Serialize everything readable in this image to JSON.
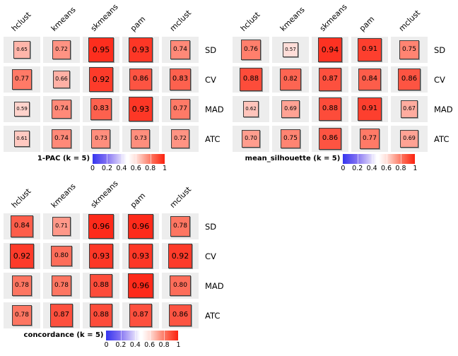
{
  "chart_data": {
    "type": "heatmap",
    "columns": [
      "hclust",
      "kmeans",
      "skmeans",
      "pam",
      "mclust"
    ],
    "row_labels": [
      "SD",
      "CV",
      "MAD",
      "ATC"
    ],
    "panels": [
      {
        "title": "1-PAC (k = 5)",
        "values": [
          [
            "0.65",
            "0.72",
            "0.95",
            "0.93",
            "0.74"
          ],
          [
            "0.77",
            "0.66",
            "0.92",
            "0.86",
            "0.83"
          ],
          [
            "0.59",
            "0.74",
            "0.83",
            "0.93",
            "0.77"
          ],
          [
            "0.61",
            "0.74",
            "0.73",
            "0.73",
            "0.72"
          ]
        ]
      },
      {
        "title": "mean_silhouette (k = 5)",
        "values": [
          [
            "0.76",
            "0.57",
            "0.94",
            "0.91",
            "0.75"
          ],
          [
            "0.88",
            "0.82",
            "0.87",
            "0.84",
            "0.86"
          ],
          [
            "0.62",
            "0.69",
            "0.88",
            "0.91",
            "0.67"
          ],
          [
            "0.70",
            "0.75",
            "0.86",
            "0.77",
            "0.69"
          ]
        ]
      },
      {
        "title": "concordance (k = 5)",
        "values": [
          [
            "0.84",
            "0.71",
            "0.96",
            "0.96",
            "0.78"
          ],
          [
            "0.92",
            "0.80",
            "0.93",
            "0.93",
            "0.92"
          ],
          [
            "0.78",
            "0.78",
            "0.88",
            "0.96",
            "0.80"
          ],
          [
            "0.78",
            "0.87",
            "0.88",
            "0.87",
            "0.86"
          ]
        ]
      }
    ],
    "legend": {
      "tick_labels": [
        "0",
        "0.2",
        "0.4",
        "0.6",
        "0.8",
        "1"
      ],
      "range": [
        0,
        1
      ],
      "position": "bottom"
    },
    "layout_hints": {
      "grid": "5 columns x 4 rows per panel",
      "square_size_encodes": "value",
      "square_color_encodes": "value"
    }
  },
  "colors": {
    "background": "#FFFFFF",
    "cell_background": "#EDEDED",
    "square_border": "#3C3C3C",
    "colormap_low": "#3535EF",
    "colormap_mid": "#FFFFFF",
    "colormap_high": "#FB2210",
    "text": "#000000"
  }
}
